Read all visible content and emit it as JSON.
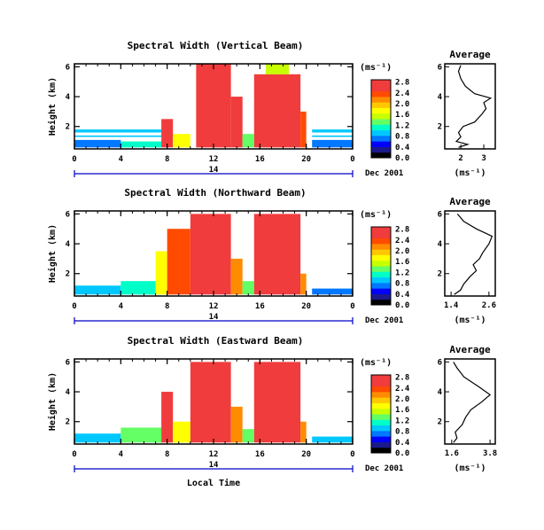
{
  "figure": {
    "xlabel": "Local Time",
    "date_label": "Dec 2001",
    "day_label": "14",
    "unit_label": "(ms⁻¹)"
  },
  "colors": {
    "scale": [
      "#000000",
      "#1a1a8c",
      "#0000ff",
      "#0078ff",
      "#00c8ff",
      "#00ffc8",
      "#64ff64",
      "#c8ff00",
      "#ffff00",
      "#ffc800",
      "#ff8c00",
      "#ff4b00",
      "#f03c3c",
      "#f03c3c"
    ],
    "blank": "#ffffff",
    "lines": "#000000"
  },
  "chart_data": [
    {
      "type": "heatmap",
      "title": "Spectral Width (Vertical Beam)",
      "ylabel": "Height (km)",
      "x_ticks": [
        "0",
        "4",
        "8",
        "12",
        "16",
        "20",
        "0"
      ],
      "y_ticks": [
        "2",
        "4",
        "6"
      ],
      "xlim": [
        0,
        24
      ],
      "ylim": [
        0.5,
        6.2
      ],
      "colorbar_ticks": [
        "0.0",
        "0.4",
        "0.8",
        "1.2",
        "1.6",
        "2.0",
        "2.4",
        "2.8"
      ],
      "colorbar_range": [
        0,
        2.8
      ],
      "cells": [
        {
          "t0": 0,
          "t1": 4,
          "h0": 0.6,
          "h1": 1.1,
          "v": 0.7
        },
        {
          "t0": 4,
          "t1": 7.5,
          "h0": 0.6,
          "h1": 1.0,
          "v": 1.0
        },
        {
          "t0": 0,
          "t1": 7.5,
          "h0": 1.3,
          "h1": 1.4,
          "v": 0.8
        },
        {
          "t0": 0,
          "t1": 7.5,
          "h0": 1.6,
          "h1": 1.8,
          "v": 0.9
        },
        {
          "t0": 7.5,
          "t1": 8.5,
          "h0": 0.6,
          "h1": 2.5,
          "v": 2.4
        },
        {
          "t0": 8.5,
          "t1": 10,
          "h0": 0.6,
          "h1": 1.5,
          "v": 1.6
        },
        {
          "t0": 10.5,
          "t1": 13.5,
          "h0": 0.6,
          "h1": 6.2,
          "v": 2.8
        },
        {
          "t0": 13.5,
          "t1": 14.5,
          "h0": 0.6,
          "h1": 4,
          "v": 2.4
        },
        {
          "t0": 14.5,
          "t1": 15.5,
          "h0": 0.6,
          "h1": 1.5,
          "v": 1.2
        },
        {
          "t0": 15.5,
          "t1": 19.5,
          "h0": 0.6,
          "h1": 5.5,
          "v": 2.8
        },
        {
          "t0": 16.5,
          "t1": 18.5,
          "h0": 5.5,
          "h1": 6.2,
          "v": 1.4
        },
        {
          "t0": 19.5,
          "t1": 20,
          "h0": 0.6,
          "h1": 3,
          "v": 2.2
        },
        {
          "t0": 20.5,
          "t1": 24,
          "h0": 0.6,
          "h1": 1.1,
          "v": 0.6
        },
        {
          "t0": 20.5,
          "t1": 24,
          "h0": 1.3,
          "h1": 1.4,
          "v": 0.8
        },
        {
          "t0": 20.5,
          "t1": 24,
          "h0": 1.6,
          "h1": 1.8,
          "v": 0.9
        }
      ],
      "average_panel": {
        "title": "Average",
        "xlabel": "(ms⁻¹)",
        "x_ticks": [
          "2",
          "3"
        ],
        "xlim": [
          1.3,
          3.5
        ],
        "y_ticks": [
          "2",
          "4",
          "6"
        ],
        "ylim": [
          0.5,
          6.2
        ],
        "profile": [
          [
            1.9,
            0.6
          ],
          [
            2.3,
            0.8
          ],
          [
            1.8,
            1.0
          ],
          [
            2.0,
            1.3
          ],
          [
            1.9,
            1.6
          ],
          [
            2.1,
            2.0
          ],
          [
            2.6,
            2.3
          ],
          [
            2.9,
            2.8
          ],
          [
            3.1,
            3.2
          ],
          [
            3.0,
            3.6
          ],
          [
            3.3,
            3.9
          ],
          [
            2.6,
            4.2
          ],
          [
            2.2,
            4.7
          ],
          [
            2.0,
            5.2
          ],
          [
            1.9,
            5.7
          ],
          [
            2.0,
            6.1
          ]
        ]
      }
    },
    {
      "type": "heatmap",
      "title": "Spectral Width (Northward Beam)",
      "ylabel": "Height (km)",
      "x_ticks": [
        "0",
        "4",
        "8",
        "12",
        "16",
        "20",
        "0"
      ],
      "y_ticks": [
        "2",
        "4",
        "6"
      ],
      "xlim": [
        0,
        24
      ],
      "ylim": [
        0.5,
        6.2
      ],
      "colorbar_ticks": [
        "0.0",
        "0.4",
        "0.8",
        "1.2",
        "1.6",
        "2.0",
        "2.4",
        "2.8"
      ],
      "colorbar_range": [
        0,
        2.8
      ],
      "cells": [
        {
          "t0": 0,
          "t1": 4,
          "h0": 0.6,
          "h1": 1.2,
          "v": 0.8
        },
        {
          "t0": 4,
          "t1": 7.5,
          "h0": 0.6,
          "h1": 1.5,
          "v": 1.1
        },
        {
          "t0": 7,
          "t1": 8,
          "h0": 0.6,
          "h1": 3.5,
          "v": 1.7
        },
        {
          "t0": 8,
          "t1": 10,
          "h0": 0.6,
          "h1": 5,
          "v": 2.2
        },
        {
          "t0": 10,
          "t1": 13.5,
          "h0": 0.6,
          "h1": 6,
          "v": 2.8
        },
        {
          "t0": 13.5,
          "t1": 14.5,
          "h0": 0.6,
          "h1": 3,
          "v": 2.0
        },
        {
          "t0": 14.5,
          "t1": 15.5,
          "h0": 0.6,
          "h1": 1.5,
          "v": 1.3
        },
        {
          "t0": 15.5,
          "t1": 19.5,
          "h0": 0.6,
          "h1": 6,
          "v": 2.8
        },
        {
          "t0": 19.5,
          "t1": 20,
          "h0": 0.6,
          "h1": 2,
          "v": 2.0
        },
        {
          "t0": 20.5,
          "t1": 24,
          "h0": 0.6,
          "h1": 1.0,
          "v": 0.7
        }
      ],
      "average_panel": {
        "title": "Average",
        "xlabel": "(ms⁻¹)",
        "x_ticks": [
          "1.4",
          "2.6"
        ],
        "xlim": [
          1.2,
          2.8
        ],
        "y_ticks": [
          "2",
          "4",
          "6"
        ],
        "ylim": [
          0.5,
          6.2
        ],
        "profile": [
          [
            1.5,
            0.6
          ],
          [
            1.7,
            0.9
          ],
          [
            1.8,
            1.3
          ],
          [
            2.0,
            1.8
          ],
          [
            2.2,
            2.2
          ],
          [
            2.1,
            2.6
          ],
          [
            2.3,
            3.0
          ],
          [
            2.4,
            3.4
          ],
          [
            2.6,
            4.0
          ],
          [
            2.7,
            4.5
          ],
          [
            2.2,
            5.0
          ],
          [
            1.8,
            5.5
          ],
          [
            1.6,
            6.0
          ]
        ]
      }
    },
    {
      "type": "heatmap",
      "title": "Spectral Width (Eastward Beam)",
      "ylabel": "Height (km)",
      "x_ticks": [
        "0",
        "4",
        "8",
        "12",
        "16",
        "20",
        "0"
      ],
      "y_ticks": [
        "2",
        "4",
        "6"
      ],
      "xlim": [
        0,
        24
      ],
      "ylim": [
        0.5,
        6.2
      ],
      "colorbar_ticks": [
        "0.0",
        "0.4",
        "0.8",
        "1.2",
        "1.6",
        "2.0",
        "2.4",
        "2.8"
      ],
      "colorbar_range": [
        0,
        2.8
      ],
      "cells": [
        {
          "t0": 0,
          "t1": 4,
          "h0": 0.6,
          "h1": 1.2,
          "v": 0.9
        },
        {
          "t0": 4,
          "t1": 7.5,
          "h0": 0.6,
          "h1": 1.6,
          "v": 1.2
        },
        {
          "t0": 7.5,
          "t1": 8.5,
          "h0": 0.6,
          "h1": 4,
          "v": 2.4
        },
        {
          "t0": 8.5,
          "t1": 10,
          "h0": 0.6,
          "h1": 2,
          "v": 1.6
        },
        {
          "t0": 10,
          "t1": 13.5,
          "h0": 0.6,
          "h1": 6,
          "v": 2.8
        },
        {
          "t0": 13.5,
          "t1": 14.5,
          "h0": 0.6,
          "h1": 3,
          "v": 2.0
        },
        {
          "t0": 14.5,
          "t1": 15.5,
          "h0": 0.6,
          "h1": 1.5,
          "v": 1.3
        },
        {
          "t0": 15.5,
          "t1": 19.5,
          "h0": 0.6,
          "h1": 6,
          "v": 2.8
        },
        {
          "t0": 19.5,
          "t1": 20,
          "h0": 0.6,
          "h1": 2,
          "v": 2.0
        },
        {
          "t0": 20.5,
          "t1": 24,
          "h0": 0.6,
          "h1": 1.0,
          "v": 0.8
        }
      ],
      "average_panel": {
        "title": "Average",
        "xlabel": "(ms⁻¹)",
        "x_ticks": [
          "1.6",
          "3.8"
        ],
        "xlim": [
          1.2,
          4.1
        ],
        "y_ticks": [
          "2",
          "4",
          "6"
        ],
        "ylim": [
          0.5,
          6.2
        ],
        "profile": [
          [
            1.7,
            0.6
          ],
          [
            1.9,
            0.9
          ],
          [
            1.8,
            1.3
          ],
          [
            2.2,
            1.8
          ],
          [
            2.4,
            2.3
          ],
          [
            2.7,
            2.8
          ],
          [
            3.3,
            3.3
          ],
          [
            3.8,
            3.8
          ],
          [
            3.2,
            4.3
          ],
          [
            2.3,
            5.0
          ],
          [
            1.9,
            5.6
          ],
          [
            1.7,
            6.0
          ]
        ]
      }
    }
  ]
}
